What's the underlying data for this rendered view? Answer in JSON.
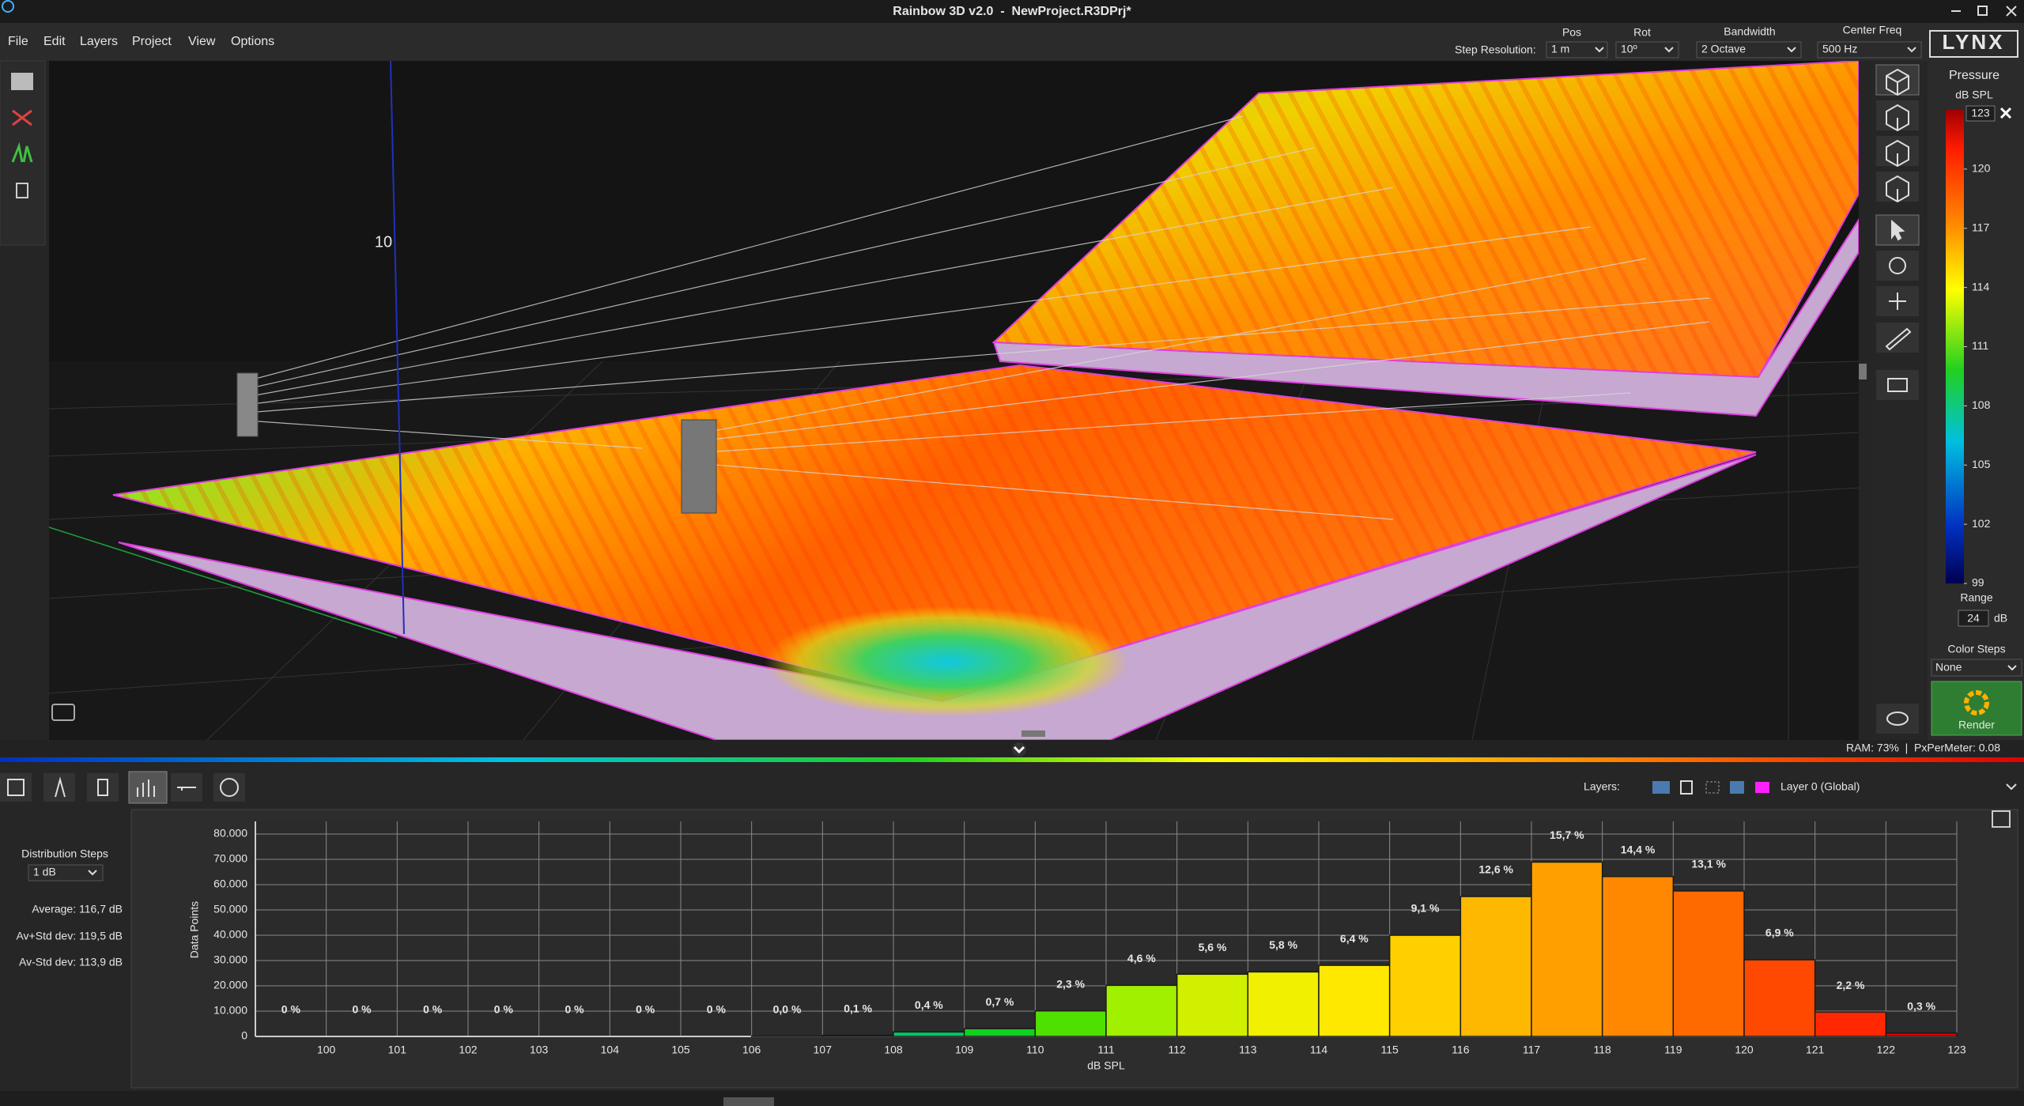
{
  "window": {
    "title": "Rainbow 3D v2.0  -  NewProject.R3DPrj*"
  },
  "menu": [
    "File",
    "Edit",
    "Layers",
    "Project",
    "View",
    "Options"
  ],
  "toolbar": {
    "step_resolution": "Step Resolution:",
    "pos_label": "Pos",
    "pos": "1 m",
    "rot_label": "Rot",
    "rot": "10º",
    "bandwidth_label": "Bandwidth",
    "bandwidth": "2 Octave",
    "center_freq_label": "Center Freq",
    "center_freq": "500 Hz",
    "logo": "LYNX"
  },
  "viewport": {
    "axis_label": "10"
  },
  "legend": {
    "title": "Pressure",
    "unit": "dB SPL",
    "max": 123,
    "ticks": [
      99,
      102,
      105,
      108,
      111,
      114,
      117,
      120
    ],
    "range_label": "Range",
    "range": 24,
    "range_unit": "dB",
    "color_steps_label": "Color Steps",
    "color_steps": "None",
    "render": "Render"
  },
  "status": {
    "text": "RAM: 73%  |  PxPerMeter: 0.08"
  },
  "layers": {
    "label": "Layers:",
    "layer": "Layer 0 (Global)"
  },
  "stats": {
    "distribution_steps_label": "Distribution Steps",
    "distribution_steps": "1 dB",
    "average": "Average: 116,7 dB",
    "av_plus": "Av+Std dev: 119,5 dB",
    "av_minus": "Av-Std dev: 113,9 dB"
  },
  "chart_data": {
    "type": "histogram",
    "x_label": "dB SPL",
    "y_label": "Data Points",
    "bins": [
      99,
      100,
      101,
      102,
      103,
      104,
      105,
      106,
      107,
      108,
      109,
      110,
      111,
      112,
      113,
      114,
      115,
      116,
      117,
      118,
      119,
      120,
      121,
      122,
      123
    ],
    "values": [
      0,
      0,
      0,
      0,
      0,
      0,
      0,
      100,
      440,
      1760,
      3070,
      10100,
      20200,
      24600,
      25500,
      28100,
      40000,
      55300,
      68900,
      63200,
      57500,
      30300,
      9650,
      1300
    ],
    "percent_labels": [
      "0 %",
      "0 %",
      "0 %",
      "0 %",
      "0 %",
      "0 %",
      "0 %",
      "0,0 %",
      "0,1 %",
      "0,4 %",
      "0,7 %",
      "2,3 %",
      "4,6 %",
      "5,6 %",
      "5,8 %",
      "6,4 %",
      "9,1 %",
      "12,6 %",
      "15,7 %",
      "14,4 %",
      "13,1 %",
      "6,9 %",
      "2,2 %",
      "0,3 %"
    ],
    "colors": [
      "#000080",
      "#0010a0",
      "#0030c0",
      "#0050d0",
      "#0070e0",
      "#0090e0",
      "#00a8d8",
      "#00b8b0",
      "#00c090",
      "#00c860",
      "#10d020",
      "#50e000",
      "#a0f000",
      "#d0f000",
      "#f0f000",
      "#ffe800",
      "#ffd000",
      "#ffb800",
      "#ffa000",
      "#ff8800",
      "#ff6a00",
      "#ff4800",
      "#ff2800",
      "#e00000"
    ],
    "xlim": [
      99,
      123
    ],
    "xticks": [
      100,
      101,
      102,
      103,
      104,
      105,
      106,
      107,
      108,
      109,
      110,
      111,
      112,
      113,
      114,
      115,
      116,
      117,
      118,
      119,
      120,
      121,
      122,
      123
    ],
    "ylim": [
      0,
      85000
    ],
    "yticks": [
      0,
      {
        "value": 10000,
        "label": "10.000"
      },
      {
        "value": 20000,
        "label": "20.000"
      },
      {
        "value": 30000,
        "label": "30.000"
      },
      {
        "value": 40000,
        "label": "40.000"
      },
      {
        "value": 50000,
        "label": "50.000"
      },
      {
        "value": 60000,
        "label": "60.000"
      },
      {
        "value": 70000,
        "label": "70.000"
      },
      {
        "value": 80000,
        "label": "80.000"
      }
    ],
    "grid": true
  }
}
